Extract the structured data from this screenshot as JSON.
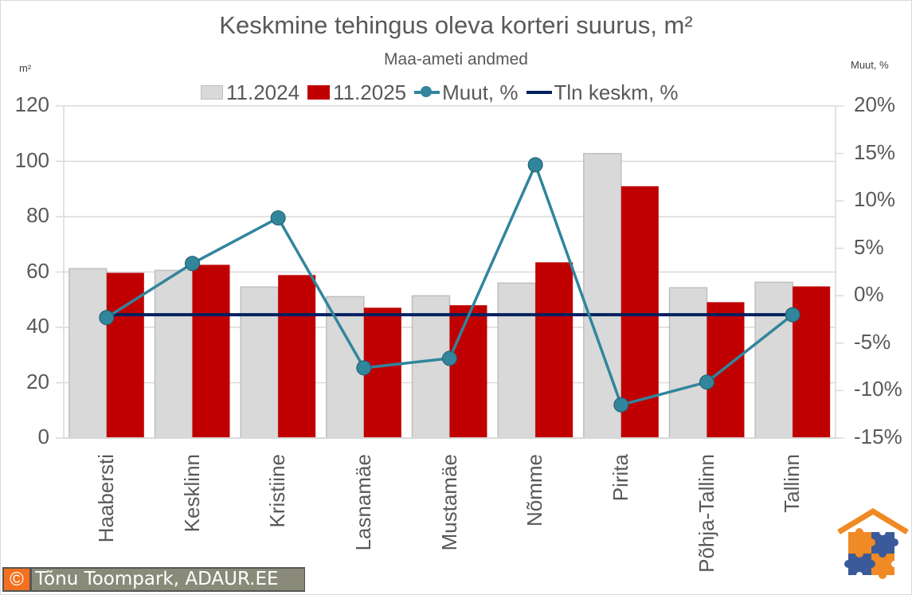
{
  "header": {
    "title": "Keskmine tehingus oleva korteri suurus, m²",
    "subtitle": "Maa-ameti andmed",
    "left_axis_unit": "m²",
    "right_axis_unit": "Muut, %"
  },
  "legend": {
    "items": [
      {
        "label": "11.2024",
        "type": "bar",
        "color": "#d9d9d9"
      },
      {
        "label": "11.2025",
        "type": "bar",
        "color": "#c00000"
      },
      {
        "label": "Muut, %",
        "type": "line-marker",
        "color": "#31859c"
      },
      {
        "label": "Tln keskm, %",
        "type": "line",
        "color": "#002060"
      }
    ]
  },
  "axes": {
    "left_ticks": [
      "120",
      "100",
      "80",
      "60",
      "40",
      "20",
      "0"
    ],
    "right_ticks": [
      "20%",
      "15%",
      "10%",
      "5%",
      "0%",
      "-5%",
      "-10%",
      "-15%"
    ]
  },
  "categories": [
    "Haabersti",
    "Kesklinn",
    "Kristiine",
    "Lasnamäe",
    "Mustamäe",
    "Nõmme",
    "Pirita",
    "Põhja-Tallinn",
    "Tallinn"
  ],
  "credit": {
    "symbol": "©",
    "text": "Tõnu Toompark, ADAUR.EE"
  },
  "colors": {
    "bar_2024": "#d9d9d9",
    "bar_2024_border": "#bfbfbf",
    "bar_2025": "#c00000",
    "change_line": "#31859c",
    "avg_line": "#002060",
    "grid": "#d9d9d9"
  },
  "chart_data": {
    "type": "bar",
    "title": "Keskmine tehingus oleva korteri suurus, m²",
    "subtitle": "Maa-ameti andmed",
    "xlabel": "",
    "ylabel": "m²",
    "ylabel_right": "Muut, %",
    "ylim": [
      0,
      120
    ],
    "ylim_right": [
      -15,
      20
    ],
    "grid": true,
    "legend_position": "top",
    "categories": [
      "Haabersti",
      "Kesklinn",
      "Kristiine",
      "Lasnamäe",
      "Mustamäe",
      "Nõmme",
      "Pirita",
      "Põhja-Tallinn",
      "Tallinn"
    ],
    "series": [
      {
        "name": "11.2024",
        "type": "bar",
        "axis": "left",
        "values": [
          61.2,
          60.6,
          54.6,
          51.1,
          51.4,
          56.0,
          102.8,
          54.3,
          56.3
        ]
      },
      {
        "name": "11.2025",
        "type": "bar",
        "axis": "left",
        "values": [
          59.7,
          62.6,
          58.9,
          47.1,
          48.0,
          63.5,
          91.0,
          49.1,
          54.8
        ]
      },
      {
        "name": "Muut, %",
        "type": "line",
        "axis": "right",
        "values": [
          -2.3,
          3.4,
          8.2,
          -7.6,
          -6.6,
          13.8,
          -11.5,
          -9.1,
          -2.0
        ]
      },
      {
        "name": "Tln keskm, %",
        "type": "line",
        "axis": "right",
        "values": [
          -2.0,
          -2.0,
          -2.0,
          -2.0,
          -2.0,
          -2.0,
          -2.0,
          -2.0,
          -2.0
        ]
      }
    ]
  }
}
